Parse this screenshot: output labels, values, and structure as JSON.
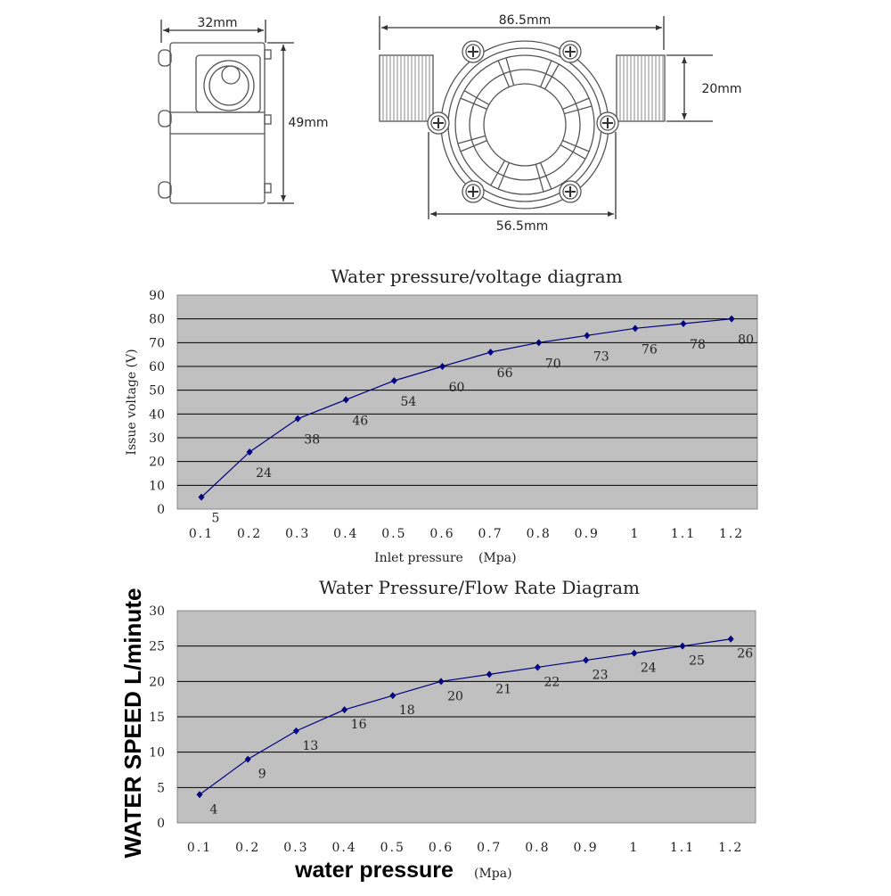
{
  "diagram": {
    "side_view": {
      "width_label": "32mm",
      "height_label": "49mm"
    },
    "front_view": {
      "length_label": "86.5mm",
      "flange_label": "56.5mm",
      "pipe_label": "20mm"
    }
  },
  "chart_data": [
    {
      "type": "line",
      "title": "Water pressure/voltage diagram",
      "xlabel": "Inlet pressure",
      "xunit": "(Mpa)",
      "ylabel": "Issue voltage (V)",
      "categories": [
        "0.1",
        "0.2",
        "0.3",
        "0.4",
        "0.5",
        "0.6",
        "0.7",
        "0.8",
        "0.9",
        "1",
        "1.1",
        "1.2"
      ],
      "values": [
        5,
        24,
        38,
        46,
        54,
        60,
        66,
        70,
        73,
        76,
        78,
        80
      ],
      "ylim": [
        0,
        90
      ],
      "yticks": [
        "0",
        "10",
        "20",
        "30",
        "40",
        "50",
        "60",
        "70",
        "80",
        "90"
      ],
      "grid": true,
      "colors": {
        "plot_bg": "#c0c0c0",
        "line": "#000080"
      }
    },
    {
      "type": "line",
      "title": "Water Pressure/Flow Rate Diagram",
      "xlabel": "water pressure",
      "xunit": "(Mpa)",
      "ylabel": "WATER SPEED L/minute",
      "categories": [
        "0.1",
        "0.2",
        "0.3",
        "0.4",
        "0.5",
        "0.6",
        "0.7",
        "0.8",
        "0.9",
        "1",
        "1.1",
        "1.2"
      ],
      "values": [
        4,
        9,
        13,
        16,
        18,
        20,
        21,
        22,
        23,
        24,
        25,
        26
      ],
      "ylim": [
        0,
        30
      ],
      "yticks": [
        "0",
        "5",
        "10",
        "15",
        "20",
        "25",
        "30"
      ],
      "grid": true,
      "colors": {
        "plot_bg": "#c0c0c0",
        "line": "#000080"
      }
    }
  ]
}
